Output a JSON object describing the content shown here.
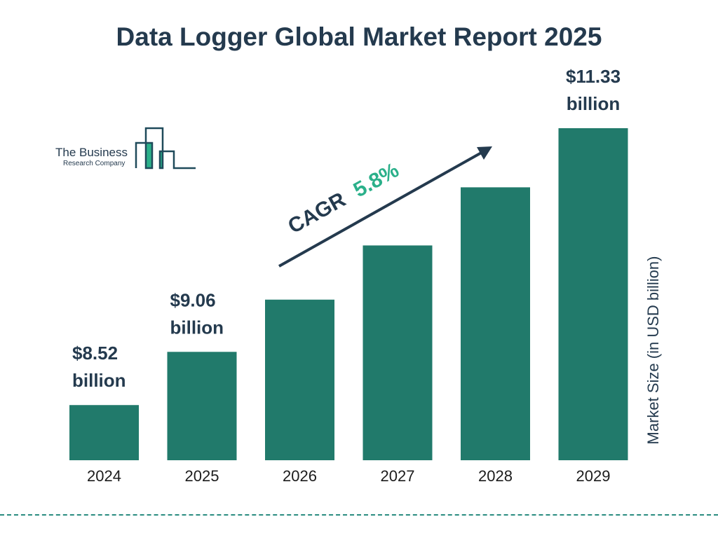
{
  "chart_data": {
    "type": "bar",
    "title": "Data Logger Global Market Report 2025",
    "ylabel": "Market Size (in USD billion)",
    "categories": [
      "2024",
      "2025",
      "2026",
      "2027",
      "2028",
      "2029"
    ],
    "values": [
      8.52,
      9.06,
      9.59,
      10.14,
      10.73,
      11.33
    ],
    "data_labels": [
      "$8.52 billion",
      "$9.06 billion",
      "",
      "",
      "",
      "$11.33 billion"
    ],
    "bar_color": "#217a6b",
    "grid": false,
    "annotation": {
      "label": "CAGR",
      "value": "5.8%",
      "value_color": "#2bb08a"
    }
  },
  "logo": {
    "line1": "The Business",
    "line2": "Research Company"
  }
}
